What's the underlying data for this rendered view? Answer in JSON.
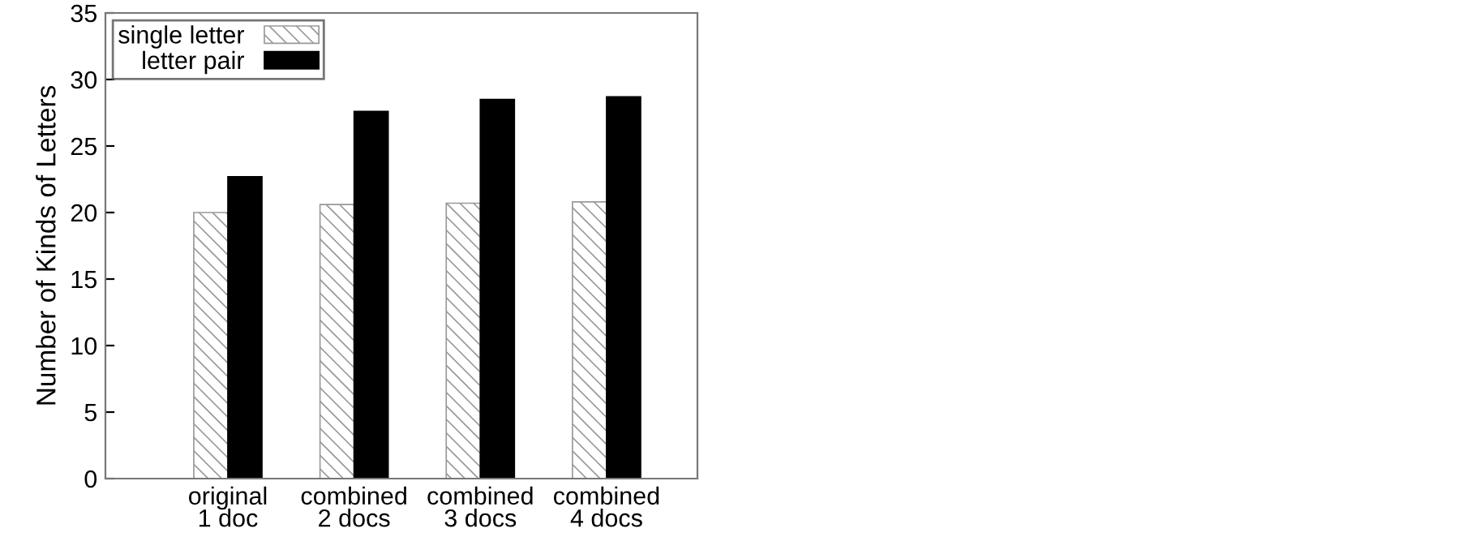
{
  "chart_data": {
    "type": "bar",
    "ylabel": "Number of Kinds of Letters",
    "categories": [
      "original\n1 doc",
      "combined\n2 docs",
      "combined\n3 docs",
      "combined\n4 docs"
    ],
    "series": [
      {
        "name": "single letter",
        "color": "#999999",
        "values": [
          20.0,
          20.6,
          20.7,
          20.8
        ]
      },
      {
        "name": "letter pair",
        "color": "#000000",
        "values": [
          22.7,
          27.6,
          28.5,
          28.7
        ]
      }
    ],
    "ylim": [
      0,
      35
    ],
    "yticks": [
      0,
      5,
      10,
      15,
      20,
      25,
      30,
      35
    ],
    "grid": false,
    "legend": "top left"
  }
}
